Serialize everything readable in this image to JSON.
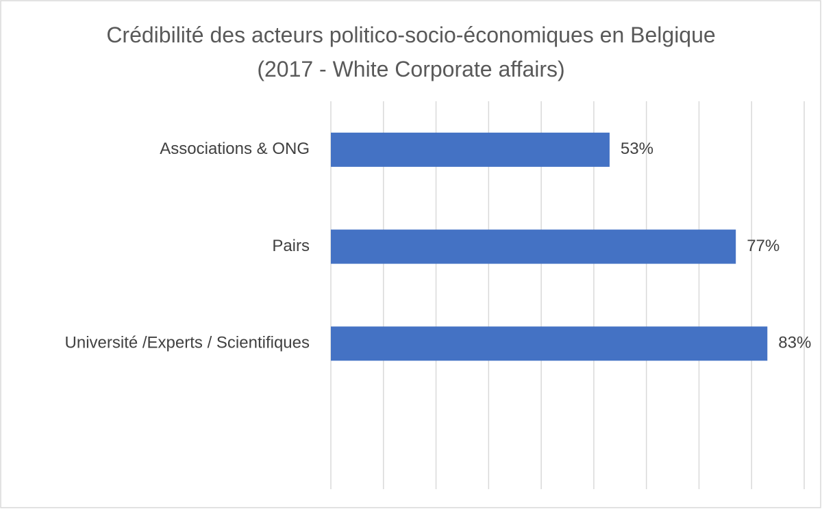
{
  "chart_data": {
    "type": "bar",
    "orientation": "horizontal",
    "title": "Crédibilité des acteurs politico-socio-économiques en Belgique (2017 - White Corporate affairs)",
    "categories": [
      "Associations & ONG",
      "Pairs",
      "Université /Experts / Scientifiques"
    ],
    "values": [
      53,
      77,
      83
    ],
    "value_labels": [
      "53%",
      "77%",
      "83%"
    ],
    "color": "#4472c4",
    "xlim": [
      0,
      90
    ],
    "xticks": [
      0,
      10,
      20,
      30,
      40,
      50,
      60,
      70,
      80,
      90
    ],
    "grid": true
  }
}
